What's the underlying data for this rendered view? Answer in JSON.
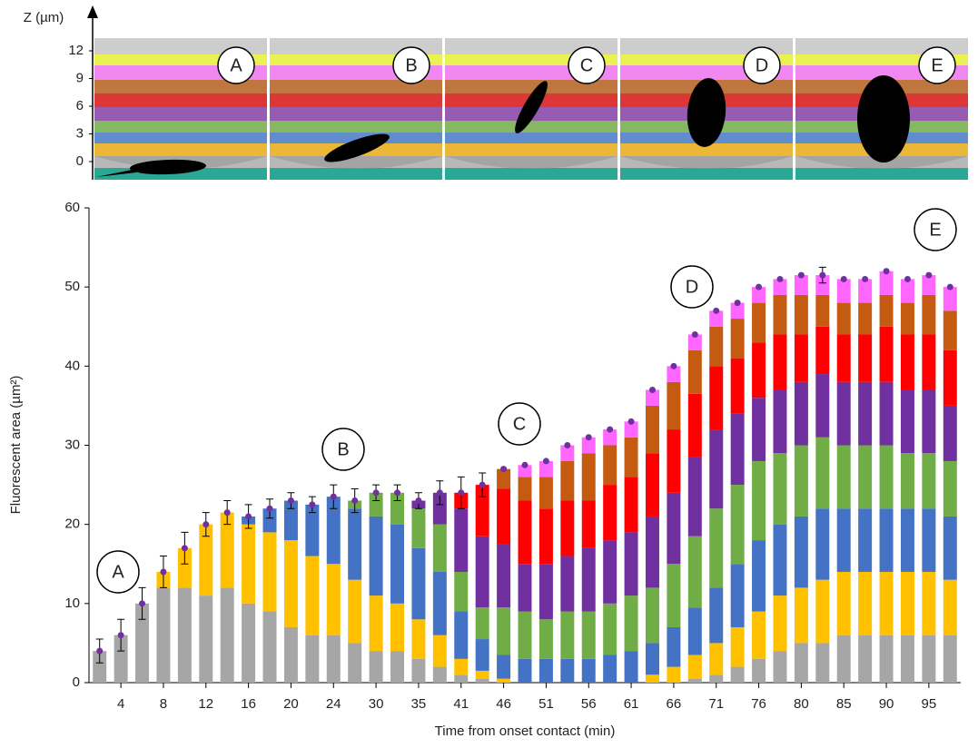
{
  "top_panel": {
    "axis_label": "Z (µm)",
    "zticks": [
      0,
      3,
      6,
      9,
      12
    ],
    "panels": [
      "A",
      "B",
      "C",
      "D",
      "E"
    ]
  },
  "chart_data": {
    "type": "stacked_bar",
    "y_label": "Fluorescent area (µm²)",
    "x_label": "Time from onset contact (min)",
    "categories": [
      null,
      "4",
      null,
      "8",
      null,
      "12",
      null,
      "16",
      null,
      "20",
      null,
      "24",
      null,
      "30",
      null,
      "35",
      null,
      "41",
      null,
      "46",
      null,
      "51",
      null,
      "56",
      null,
      "61",
      null,
      "66",
      null,
      "71",
      null,
      "76",
      null,
      "80",
      null,
      "85",
      null,
      "90",
      null,
      "95",
      null
    ],
    "ylim": [
      0,
      60
    ],
    "yticks": [
      0,
      10,
      20,
      30,
      40,
      50,
      60
    ],
    "annotations": [
      "A",
      "B",
      "C",
      "D",
      "E"
    ],
    "series": [
      {
        "name": "0",
        "color": "#a6a6a6",
        "values": [
          4,
          6,
          10,
          12,
          12,
          11,
          12,
          10,
          9,
          7,
          6,
          6,
          5,
          4,
          4,
          3,
          2,
          1,
          0.5,
          0,
          0,
          0,
          0,
          0,
          0,
          0,
          0,
          0,
          0.5,
          1,
          2,
          3,
          4,
          5,
          5,
          6,
          6,
          6,
          6,
          6,
          6
        ]
      },
      {
        "name": "1.5",
        "color": "#ffc000",
        "values": [
          0,
          0,
          0,
          2,
          5,
          9,
          9.5,
          10,
          10,
          11,
          10,
          9,
          8,
          7,
          6,
          5,
          4,
          2,
          1,
          0.5,
          0,
          0,
          0,
          0,
          0,
          0,
          1,
          2,
          3,
          4,
          5,
          6,
          7,
          7,
          8,
          8,
          8,
          8,
          8,
          8,
          7
        ]
      },
      {
        "name": "3",
        "color": "#4472c4",
        "values": [
          0,
          0,
          0,
          0,
          0,
          0,
          0,
          1,
          3,
          5,
          6.5,
          8.5,
          9,
          10,
          10,
          9,
          8,
          6,
          4,
          3,
          3,
          3,
          3,
          3,
          3.5,
          4,
          4,
          5,
          6,
          7,
          8,
          9,
          9,
          9,
          9,
          8,
          8,
          8,
          8,
          8,
          8
        ]
      },
      {
        "name": "4.5",
        "color": "#70ad47",
        "values": [
          0,
          0,
          0,
          0,
          0,
          0,
          0,
          0,
          0,
          0,
          0,
          0,
          1,
          3,
          4,
          5,
          6,
          5,
          4,
          6,
          6,
          5,
          6,
          6,
          6.5,
          7,
          7,
          8,
          9,
          10,
          10,
          10,
          9,
          9,
          9,
          8,
          8,
          8,
          7,
          7,
          7
        ]
      },
      {
        "name": "6",
        "color": "#7030a0",
        "values": [
          0,
          0,
          0,
          0,
          0,
          0,
          0,
          0,
          0,
          0,
          0,
          0,
          0,
          0,
          0,
          1,
          4,
          8,
          9,
          8,
          6,
          7,
          7,
          8,
          8,
          8,
          9,
          9,
          10,
          10,
          9,
          8,
          8,
          8,
          8,
          8,
          8,
          8,
          8,
          8,
          7
        ]
      },
      {
        "name": "7.5",
        "color": "#ff0000",
        "values": [
          0,
          0,
          0,
          0,
          0,
          0,
          0,
          0,
          0,
          0,
          0,
          0,
          0,
          0,
          0,
          0,
          0,
          2,
          6.5,
          7,
          8,
          7,
          7,
          6,
          7,
          7,
          8,
          8,
          8,
          8,
          7,
          7,
          7,
          6,
          6,
          6,
          6,
          7,
          7,
          7,
          7
        ]
      },
      {
        "name": "9",
        "color": "#c55a11",
        "values": [
          0,
          0,
          0,
          0,
          0,
          0,
          0,
          0,
          0,
          0,
          0,
          0,
          0,
          0,
          0,
          0,
          0,
          0,
          0,
          2.5,
          3,
          4,
          5,
          6,
          5,
          5,
          6,
          6,
          5.5,
          5,
          5,
          5,
          5,
          5,
          4,
          4,
          4,
          4,
          4,
          5,
          5
        ]
      },
      {
        "name": "10.5",
        "color": "#ff66ff",
        "values": [
          0,
          0,
          0,
          0,
          0,
          0,
          0,
          0,
          0,
          0,
          0,
          0,
          0,
          0,
          0,
          0,
          0,
          0,
          0,
          0,
          1.5,
          2,
          2,
          2,
          2,
          2,
          2,
          2,
          2,
          2,
          2,
          2,
          2,
          2.5,
          2.5,
          3,
          3,
          3,
          3,
          2.5,
          3
        ]
      }
    ],
    "totals": {
      "color": "#7030a0",
      "values": [
        4,
        6,
        10,
        14,
        17,
        20,
        21.5,
        21,
        22,
        23,
        22.5,
        23.5,
        23,
        24,
        24,
        23,
        24,
        24,
        25,
        27,
        27.5,
        28,
        30,
        31,
        32,
        33,
        37,
        40,
        44,
        47,
        48,
        50,
        51,
        51.5,
        51.5,
        51,
        51,
        52,
        51,
        51.5,
        50
      ],
      "errors": [
        1.5,
        2,
        2,
        2,
        2,
        1.5,
        1.5,
        1.5,
        1.2,
        1,
        1,
        1.5,
        1.5,
        1,
        1,
        1,
        1.5,
        2,
        1.5,
        null,
        null,
        null,
        null,
        null,
        null,
        null,
        null,
        null,
        null,
        null,
        null,
        null,
        null,
        null,
        1,
        null,
        null,
        null,
        null,
        null,
        null
      ]
    }
  }
}
